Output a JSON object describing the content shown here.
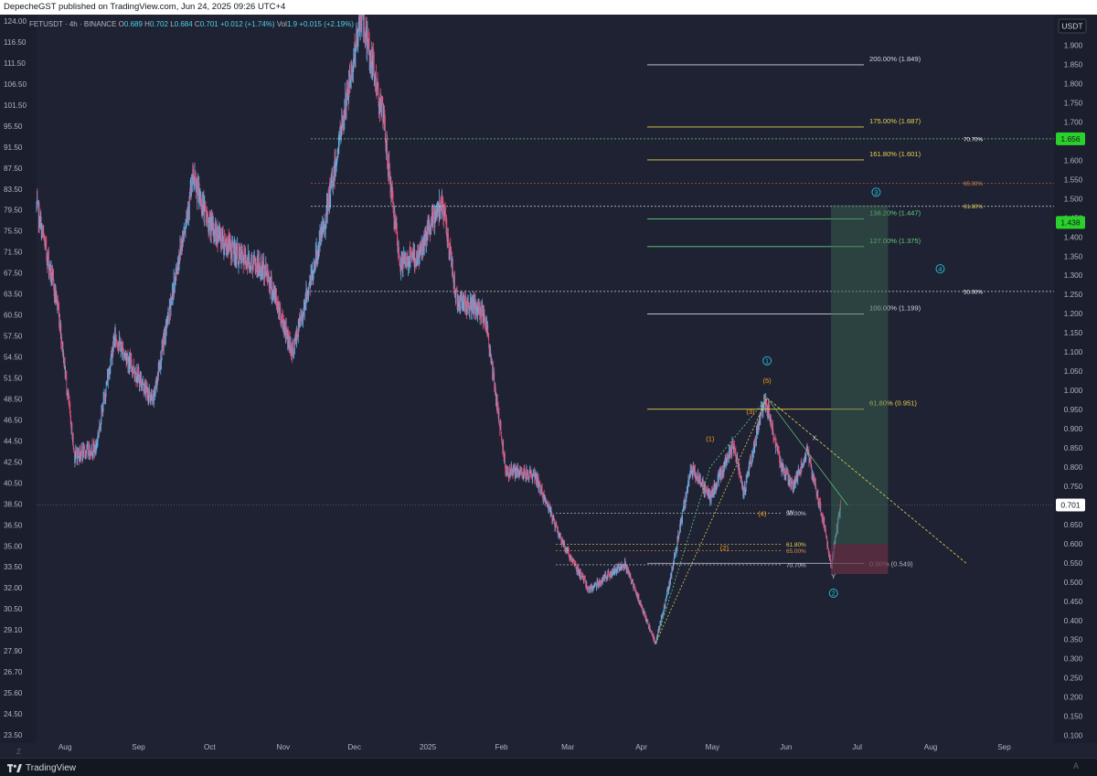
{
  "header": {
    "publish_text": "DepecheGST published on TradingView.com, Jun 24, 2025 09:26 UTC+4"
  },
  "legend": {
    "symbol": "FETUSDT · 4h · BINANCE",
    "o_label": "O",
    "o_value": "0.689",
    "h_label": "H",
    "h_value": "0.702",
    "l_label": "L",
    "l_value": "0.684",
    "c_label": "C",
    "c_value": "0.701",
    "change": "+0.012 (+1.74%)",
    "vol_label": "Vol",
    "vol_value": "1.9",
    "vol_change": "+0.015 (+2.19%)"
  },
  "footer": {
    "brand": "TradingView",
    "left_letter": "Z",
    "right_letter": "A"
  },
  "colors": {
    "background": "#1e2233",
    "up": "#5fb3e6",
    "down": "#e0527a",
    "fib_white": "#d1d4dc",
    "fib_yellow": "#e6d24a",
    "fib_green": "#63d07b",
    "wave_cyan": "#26c6da",
    "wave_orange": "#ff9f1c",
    "price_badge_green": "#2ad12a",
    "position_profit": "#3f6b52",
    "position_loss": "#6b3145"
  },
  "chart_data": {
    "type": "candlestick",
    "instrument": "FETUSDT",
    "timeframe": "4h",
    "exchange": "BINANCE",
    "right_axis": {
      "unit": "USDT",
      "ylim": [
        0.08,
        1.98
      ],
      "ticks": [
        "1.900",
        "1.850",
        "1.800",
        "1.750",
        "1.700",
        "1.650",
        "1.600",
        "1.550",
        "1.500",
        "1.450",
        "1.400",
        "1.350",
        "1.300",
        "1.250",
        "1.200",
        "1.150",
        "1.100",
        "1.050",
        "1.000",
        "0.950",
        "0.900",
        "0.850",
        "0.800",
        "0.750",
        "0.700",
        "0.650",
        "0.600",
        "0.550",
        "0.500",
        "0.450",
        "0.400",
        "0.350",
        "0.300",
        "0.250",
        "0.200",
        "0.150",
        "0.100"
      ],
      "current_price": "0.701",
      "badges": [
        {
          "label": "1.656",
          "value": 1.656
        },
        {
          "label": "1.438",
          "value": 1.438
        }
      ]
    },
    "left_axis": {
      "ticks": [
        "124.00",
        "116.50",
        "111.50",
        "106.50",
        "101.50",
        "95.50",
        "91.50",
        "87.50",
        "83.50",
        "79.50",
        "75.50",
        "71.50",
        "67.50",
        "63.50",
        "60.50",
        "57.50",
        "54.50",
        "51.50",
        "48.50",
        "46.50",
        "44.50",
        "42.50",
        "40.50",
        "38.50",
        "36.50",
        "35.00",
        "33.50",
        "32.00",
        "30.50",
        "29.10",
        "27.90",
        "26.70",
        "25.60",
        "24.50",
        "23.50"
      ]
    },
    "x_axis": {
      "labels": [
        "Aug",
        "Sep",
        "Oct",
        "Nov",
        "Dec",
        "2025",
        "Feb",
        "Mar",
        "Apr",
        "May",
        "Jun",
        "Jul",
        "Aug",
        "Sep"
      ]
    },
    "price_path": [
      {
        "date": "2024-07-20",
        "price": 1.48
      },
      {
        "date": "2024-07-29",
        "price": 1.22
      },
      {
        "date": "2024-08-05",
        "price": 0.83
      },
      {
        "date": "2024-08-14",
        "price": 0.85
      },
      {
        "date": "2024-08-22",
        "price": 1.14
      },
      {
        "date": "2024-09-07",
        "price": 0.97
      },
      {
        "date": "2024-09-24",
        "price": 1.55
      },
      {
        "date": "2024-10-01",
        "price": 1.43
      },
      {
        "date": "2024-10-13",
        "price": 1.35
      },
      {
        "date": "2024-10-25",
        "price": 1.31
      },
      {
        "date": "2024-11-05",
        "price": 1.1
      },
      {
        "date": "2024-11-19",
        "price": 1.45
      },
      {
        "date": "2024-12-04",
        "price": 1.98
      },
      {
        "date": "2024-12-13",
        "price": 1.72
      },
      {
        "date": "2024-12-20",
        "price": 1.33
      },
      {
        "date": "2024-12-28",
        "price": 1.35
      },
      {
        "date": "2025-01-07",
        "price": 1.5
      },
      {
        "date": "2025-01-13",
        "price": 1.24
      },
      {
        "date": "2025-01-25",
        "price": 1.2
      },
      {
        "date": "2025-02-03",
        "price": 0.79
      },
      {
        "date": "2025-02-15",
        "price": 0.78
      },
      {
        "date": "2025-02-27",
        "price": 0.6
      },
      {
        "date": "2025-03-10",
        "price": 0.48
      },
      {
        "date": "2025-03-25",
        "price": 0.55
      },
      {
        "date": "2025-04-07",
        "price": 0.34
      },
      {
        "date": "2025-04-13",
        "price": 0.5
      },
      {
        "date": "2025-04-22",
        "price": 0.8
      },
      {
        "date": "2025-04-30",
        "price": 0.72
      },
      {
        "date": "2025-05-10",
        "price": 0.86
      },
      {
        "date": "2025-05-14",
        "price": 0.73
      },
      {
        "date": "2025-05-23",
        "price": 0.98
      },
      {
        "date": "2025-05-30",
        "price": 0.8
      },
      {
        "date": "2025-06-04",
        "price": 0.75
      },
      {
        "date": "2025-06-10",
        "price": 0.84
      },
      {
        "date": "2025-06-17",
        "price": 0.65
      },
      {
        "date": "2025-06-20",
        "price": 0.54
      },
      {
        "date": "2025-06-24",
        "price": 0.701
      }
    ],
    "fib_extension": [
      {
        "label": "200.00% (1.849)",
        "value": 1.849,
        "color": "#d1d4dc"
      },
      {
        "label": "175.00% (1.687)",
        "value": 1.687,
        "color": "#e6d24a"
      },
      {
        "label": "161.80% (1.601)",
        "value": 1.601,
        "color": "#e6d24a"
      },
      {
        "label": "138.20% (1.447)",
        "value": 1.447,
        "color": "#63d07b"
      },
      {
        "label": "127.00% (1.375)",
        "value": 1.375,
        "color": "#63d07b"
      },
      {
        "label": "100.00% (1.199)",
        "value": 1.199,
        "color": "#d1d4dc"
      },
      {
        "label": "61.80% (0.951)",
        "value": 0.951,
        "color": "#e6d24a"
      },
      {
        "label": "0.00% (0.549)",
        "value": 0.549,
        "color": "#d1d4dc"
      }
    ],
    "retracement_upper": [
      {
        "label": "70.70%",
        "value": 1.656
      },
      {
        "label": "65.00%",
        "value": 1.54
      },
      {
        "label": "61.80%",
        "value": 1.48
      },
      {
        "label": "50.00%",
        "value": 1.258
      }
    ],
    "retracement_lower": [
      {
        "label": "50.00%",
        "value": 0.68
      },
      {
        "label": "61.80%",
        "value": 0.598
      },
      {
        "label": "65.00%",
        "value": 0.582
      },
      {
        "label": "70.70%",
        "value": 0.545
      }
    ],
    "wave_labels": [
      {
        "text": "(1)",
        "date": "2025-04-30",
        "price": 0.875,
        "color": "#ff9f1c"
      },
      {
        "text": "(2)",
        "date": "2025-05-06",
        "price": 0.59,
        "color": "#ff9f1c"
      },
      {
        "text": "(3)",
        "date": "2025-05-17",
        "price": 0.945,
        "color": "#ff9f1c"
      },
      {
        "text": "(4)",
        "date": "2025-05-22",
        "price": 0.68,
        "color": "#ff9f1c"
      },
      {
        "text": "(5)",
        "date": "2025-05-24",
        "price": 1.027,
        "color": "#ff9f1c"
      },
      {
        "text": "W",
        "date": "2025-06-03",
        "price": 0.683,
        "color": "#d1d4dc"
      },
      {
        "text": "X",
        "date": "2025-06-13",
        "price": 0.877,
        "color": "#d1d4dc"
      },
      {
        "text": "Y",
        "date": "2025-06-21",
        "price": 0.516,
        "color": "#d1d4dc"
      },
      {
        "text": "1",
        "date": "2025-05-24",
        "price": 1.077,
        "color": "#26c6da",
        "circle": true
      },
      {
        "text": "2",
        "date": "2025-06-21",
        "price": 0.471,
        "color": "#26c6da",
        "circle": true
      },
      {
        "text": "3",
        "date": "2025-07-09",
        "price": 1.517,
        "color": "#26c6da",
        "circle": true
      },
      {
        "text": "4",
        "date": "2025-08-05",
        "price": 1.317,
        "color": "#26c6da",
        "circle": true
      }
    ],
    "position": {
      "type": "long",
      "entry": 0.599,
      "stop": 0.521,
      "target": 1.483,
      "start_date": "2025-06-20",
      "end_date": "2025-07-14"
    },
    "title": "",
    "xlabel": "",
    "ylabel": ""
  }
}
